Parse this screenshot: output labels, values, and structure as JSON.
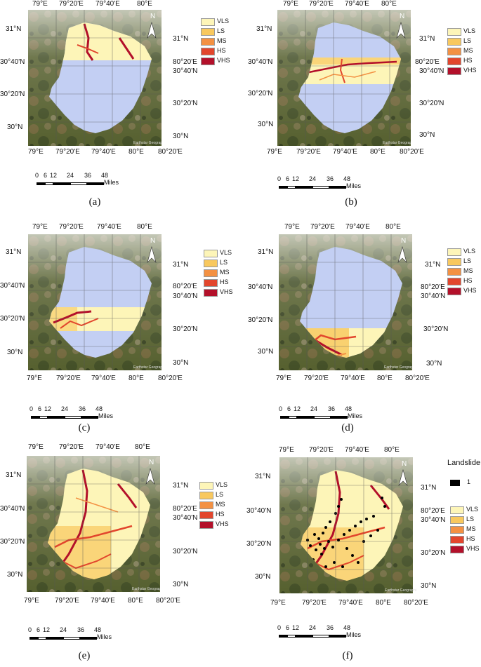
{
  "axes": {
    "top_labels": [
      "79°E",
      "79°20'E",
      "79°40'E",
      "80°E"
    ],
    "bottom_labels": [
      "79°E",
      "79°20'E",
      "79°40'E",
      "80°E",
      "80°20'E"
    ],
    "left_labels": [
      "31°N",
      "30°40'N",
      "30°20'N",
      "30°N"
    ],
    "right_labels": [
      "31°N",
      "80°20'E",
      "30°40'N",
      "30°20'N",
      "30°N"
    ]
  },
  "north_arrow": "N",
  "watermark": "Earthstar Geographics",
  "scale_bar": {
    "ticks": [
      "0",
      "6",
      "12",
      "24",
      "36",
      "48"
    ],
    "units": "Miles"
  },
  "legend": [
    {
      "label": "VLS",
      "color": "#fdf5b8"
    },
    {
      "label": "LS",
      "color": "#f8c85e"
    },
    {
      "label": "MS",
      "color": "#f39143"
    },
    {
      "label": "HS",
      "color": "#e2462d"
    },
    {
      "label": "VHS",
      "color": "#b3102a"
    }
  ],
  "landslide_legend": {
    "title": "Landslide",
    "value": "1",
    "color": "#000000"
  },
  "colors": {
    "study_area": "#c3cff3",
    "terrain_dark": "#3d4a2a",
    "snow": "#e4e4e4"
  },
  "panels": [
    {
      "caption": "(a)",
      "band": "top"
    },
    {
      "caption": "(b)",
      "band": "upper-middle"
    },
    {
      "caption": "(c)",
      "band": "lower-middle"
    },
    {
      "caption": "(d)",
      "band": "bottom"
    },
    {
      "caption": "(e)",
      "band": "all"
    },
    {
      "caption": "(f)",
      "band": "all-with-landslides"
    }
  ]
}
